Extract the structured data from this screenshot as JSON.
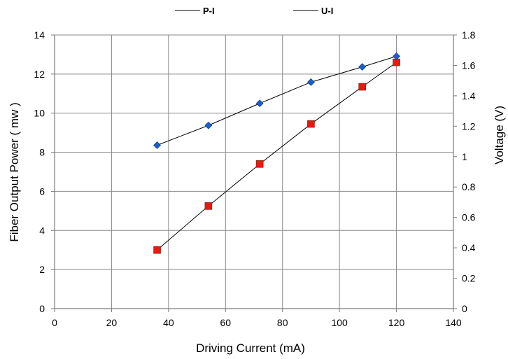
{
  "chart_data": {
    "type": "line",
    "title": "",
    "xlabel": "Driving Current  (mA)",
    "ylabel_left": "Fiber Output Power ( mw )",
    "ylabel_right": "Voltage  (V)",
    "xlim": [
      0,
      140
    ],
    "ylim_left": [
      0,
      14
    ],
    "ylim_right": [
      0,
      1.8
    ],
    "x_ticks": [
      "0",
      "20",
      "40",
      "60",
      "80",
      "100",
      "120",
      "140"
    ],
    "y_left_ticks": [
      "0",
      "2",
      "4",
      "6",
      "8",
      "10",
      "12",
      "14"
    ],
    "y_right_ticks": [
      "0",
      "0.2",
      "0.4",
      "0.6",
      "0.8",
      "1",
      "1.2",
      "1.4",
      "1.6",
      "1.8"
    ],
    "grid": true,
    "legend_position": "top",
    "series": [
      {
        "name": "P-I",
        "axis": "left",
        "marker": "square",
        "color": "#e8190f",
        "x": [
          36,
          54,
          72,
          90,
          108,
          120
        ],
        "values": [
          3.0,
          5.25,
          7.4,
          9.45,
          11.35,
          12.6
        ]
      },
      {
        "name": "U-I",
        "axis": "right",
        "marker": "diamond",
        "color": "#1a5fc8",
        "x": [
          36,
          54,
          72,
          90,
          108,
          120
        ],
        "values": [
          1.075,
          1.205,
          1.35,
          1.49,
          1.59,
          1.66
        ]
      }
    ]
  }
}
